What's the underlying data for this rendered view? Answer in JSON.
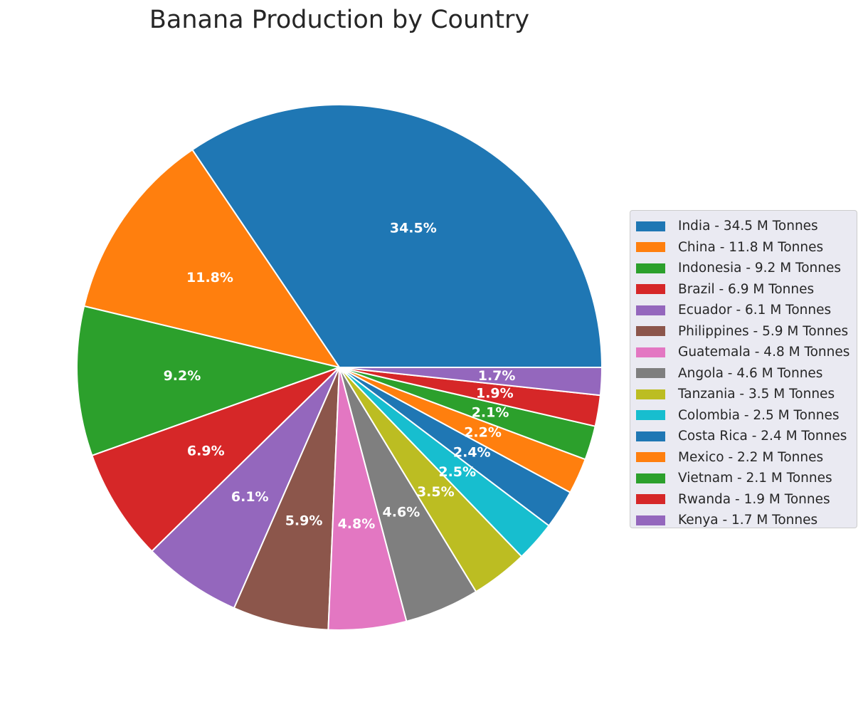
{
  "chart_data": {
    "type": "pie",
    "title": "Banana Production by Country",
    "unit": "M Tonnes",
    "legend_position": "right",
    "start_angle_deg": 0,
    "direction": "counterclockwise",
    "slices": [
      {
        "label": "India",
        "value": 34.5,
        "pct": "34.5%",
        "legend": "India - 34.5 M Tonnes",
        "color": "#1f77b4"
      },
      {
        "label": "China",
        "value": 11.8,
        "pct": "11.8%",
        "legend": "China - 11.8 M Tonnes",
        "color": "#ff7f0e"
      },
      {
        "label": "Indonesia",
        "value": 9.2,
        "pct": "9.2%",
        "legend": "Indonesia - 9.2 M Tonnes",
        "color": "#2ca02c"
      },
      {
        "label": "Brazil",
        "value": 6.9,
        "pct": "6.9%",
        "legend": "Brazil - 6.9 M Tonnes",
        "color": "#d62728"
      },
      {
        "label": "Ecuador",
        "value": 6.1,
        "pct": "6.1%",
        "legend": "Ecuador - 6.1 M Tonnes",
        "color": "#9467bd"
      },
      {
        "label": "Philippines",
        "value": 5.9,
        "pct": "5.9%",
        "legend": "Philippines - 5.9 M Tonnes",
        "color": "#8c564b"
      },
      {
        "label": "Guatemala",
        "value": 4.8,
        "pct": "4.8%",
        "legend": "Guatemala - 4.8 M Tonnes",
        "color": "#e377c2"
      },
      {
        "label": "Angola",
        "value": 4.6,
        "pct": "4.6%",
        "legend": "Angola - 4.6 M Tonnes",
        "color": "#7f7f7f"
      },
      {
        "label": "Tanzania",
        "value": 3.5,
        "pct": "3.5%",
        "legend": "Tanzania - 3.5 M Tonnes",
        "color": "#bcbd22"
      },
      {
        "label": "Colombia",
        "value": 2.5,
        "pct": "2.5%",
        "legend": "Colombia - 2.5 M Tonnes",
        "color": "#17becf"
      },
      {
        "label": "Costa Rica",
        "value": 2.4,
        "pct": "2.4%",
        "legend": "Costa Rica - 2.4 M Tonnes",
        "color": "#1f77b4"
      },
      {
        "label": "Mexico",
        "value": 2.2,
        "pct": "2.2%",
        "legend": "Mexico - 2.2 M Tonnes",
        "color": "#ff7f0e"
      },
      {
        "label": "Vietnam",
        "value": 2.1,
        "pct": "2.1%",
        "legend": "Vietnam - 2.1 M Tonnes",
        "color": "#2ca02c"
      },
      {
        "label": "Rwanda",
        "value": 1.9,
        "pct": "1.9%",
        "legend": "Rwanda - 1.9 M Tonnes",
        "color": "#d62728"
      },
      {
        "label": "Kenya",
        "value": 1.7,
        "pct": "1.7%",
        "legend": "Kenya - 1.7 M Tonnes",
        "color": "#9467bd"
      }
    ]
  }
}
